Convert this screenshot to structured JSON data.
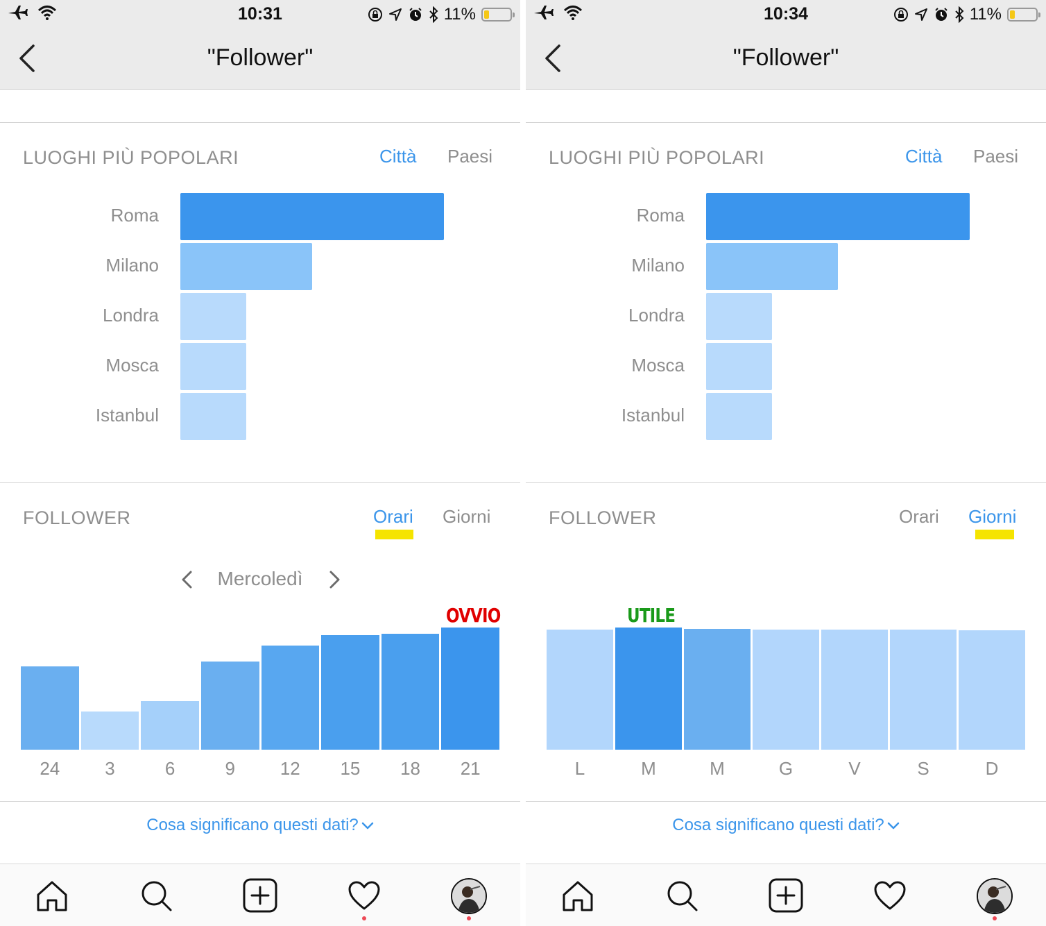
{
  "screens": [
    {
      "status": {
        "time": "10:31",
        "battery_pct": "11%"
      },
      "nav": {
        "title": "\"Follower\""
      },
      "places": {
        "title": "LUOGHI PIÙ POPOLARI",
        "tab_cities": "Città",
        "tab_countries": "Paesi",
        "active_tab": "cities",
        "items": [
          {
            "label": "Roma",
            "share": 1.0,
            "color": "#3b95ed"
          },
          {
            "label": "Milano",
            "share": 0.5,
            "color": "#8ac4f9"
          },
          {
            "label": "Londra",
            "share": 0.25,
            "color": "#b8dafc"
          },
          {
            "label": "Mosca",
            "share": 0.25,
            "color": "#b8dafc"
          },
          {
            "label": "Istanbul",
            "share": 0.25,
            "color": "#b8dafc"
          }
        ]
      },
      "follower": {
        "title": "FOLLOWER",
        "tab_hours": "Orari",
        "tab_days": "Giorni",
        "active_tab": "hours",
        "day_selector": "Mercoledì",
        "annotation": "OVVIO",
        "annotation_color": "#e00000"
      },
      "help_link": "Cosa significano questi dati?"
    },
    {
      "status": {
        "time": "10:34",
        "battery_pct": "11%"
      },
      "nav": {
        "title": "\"Follower\""
      },
      "places": {
        "title": "LUOGHI PIÙ POPOLARI",
        "tab_cities": "Città",
        "tab_countries": "Paesi",
        "active_tab": "cities",
        "items": [
          {
            "label": "Roma",
            "share": 1.0,
            "color": "#3b95ed"
          },
          {
            "label": "Milano",
            "share": 0.5,
            "color": "#8ac4f9"
          },
          {
            "label": "Londra",
            "share": 0.25,
            "color": "#b8dafc"
          },
          {
            "label": "Mosca",
            "share": 0.25,
            "color": "#b8dafc"
          },
          {
            "label": "Istanbul",
            "share": 0.25,
            "color": "#b8dafc"
          }
        ]
      },
      "follower": {
        "title": "FOLLOWER",
        "tab_hours": "Orari",
        "tab_days": "Giorni",
        "active_tab": "days",
        "annotation": "UTILE",
        "annotation_color": "#1a9a1a"
      },
      "help_link": "Cosa significano questi dati?"
    }
  ],
  "chart_data": [
    {
      "type": "bar",
      "categories": [
        "24",
        "3",
        "6",
        "9",
        "12",
        "15",
        "18",
        "21"
      ],
      "values": [
        0.68,
        0.31,
        0.4,
        0.72,
        0.85,
        0.94,
        0.95,
        1.0
      ],
      "colors": [
        "#6aaff0",
        "#b8dafc",
        "#a5d0fa",
        "#6aaff0",
        "#58a7f0",
        "#4a9fee",
        "#4a9fee",
        "#3b95ed"
      ],
      "ylim": [
        0,
        1
      ]
    },
    {
      "type": "bar",
      "categories": [
        "L",
        "M",
        "M",
        "G",
        "V",
        "S",
        "D"
      ],
      "values": [
        0.985,
        1.0,
        0.99,
        0.985,
        0.985,
        0.985,
        0.98
      ],
      "colors": [
        "#b2d6fc",
        "#3b95ed",
        "#6aaff0",
        "#b2d6fc",
        "#b2d6fc",
        "#b2d6fc",
        "#b2d6fc"
      ],
      "ylim": [
        0,
        1
      ]
    }
  ],
  "tabbar": {
    "items": [
      "home-icon",
      "search-icon",
      "add-icon",
      "heart-icon",
      "profile-avatar"
    ],
    "notification_color": "#ed4956"
  }
}
